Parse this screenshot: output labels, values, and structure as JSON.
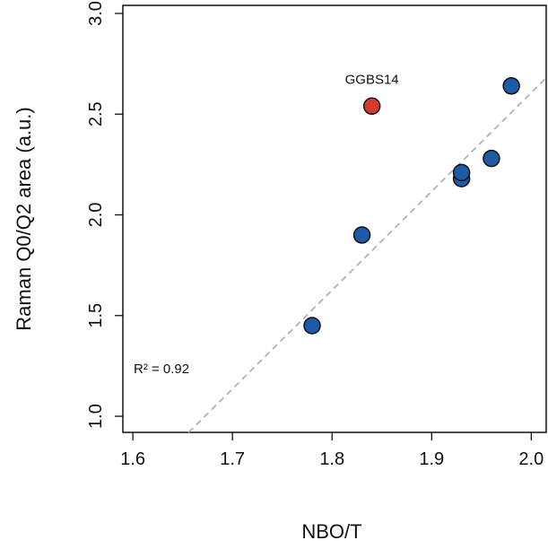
{
  "chart_data": {
    "type": "scatter",
    "xlabel": "NBO/T",
    "ylabel": "Raman Q0/Q2 area (a.u.)",
    "xlim": [
      1.59,
      2.015
    ],
    "ylim": [
      0.92,
      3.04
    ],
    "xticks": [
      "1.6",
      "1.7",
      "1.8",
      "1.9",
      "2.0"
    ],
    "yticks": [
      "1.0",
      "1.5",
      "2.0",
      "2.5",
      "3.0"
    ],
    "series": [
      {
        "color": "#1f5aa6",
        "points": [
          {
            "x": 1.78,
            "y": 1.45
          },
          {
            "x": 1.83,
            "y": 1.9
          },
          {
            "x": 1.93,
            "y": 2.18
          },
          {
            "x": 1.93,
            "y": 2.21
          },
          {
            "x": 1.96,
            "y": 2.28
          },
          {
            "x": 1.98,
            "y": 2.64
          }
        ]
      },
      {
        "color": "#d43b33",
        "points": [
          {
            "x": 1.84,
            "y": 2.54,
            "label": "GGBS14"
          }
        ]
      }
    ],
    "fit_line": {
      "style": "dashed",
      "color": "#aaaaaa",
      "x": [
        1.656,
        2.015
      ],
      "y": [
        0.92,
        2.68
      ]
    },
    "annotations": [
      {
        "text": "R² = 0.92"
      }
    ],
    "grid": false,
    "box": true
  }
}
